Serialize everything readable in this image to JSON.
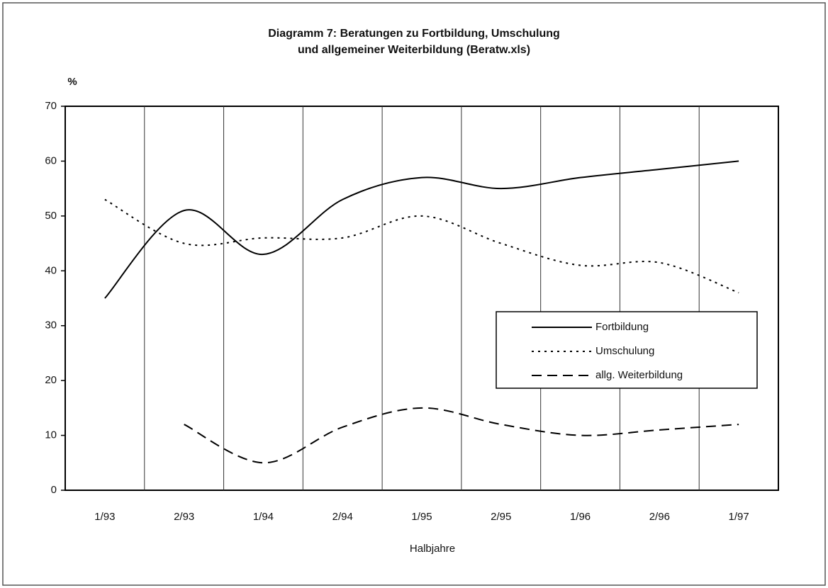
{
  "chart_data": {
    "type": "line",
    "title": "Diagramm 7: Beratungen zu Fortbildung, Umschulung",
    "subtitle": "und allgemeiner Weiterbildung (Beratw.xls)",
    "ylabel": "%",
    "xlabel": "Halbjahre",
    "categories": [
      "1/93",
      "2/93",
      "1/94",
      "2/94",
      "1/95",
      "2/95",
      "1/96",
      "2/96",
      "1/97"
    ],
    "series": [
      {
        "name": "Fortbildung",
        "color": "#000000",
        "dash": "solid",
        "values": [
          35,
          51,
          43,
          53,
          57,
          55,
          57,
          58.5,
          60
        ]
      },
      {
        "name": "Umschulung",
        "color": "#000000",
        "dash": "dotted",
        "values": [
          53,
          45,
          46,
          46,
          50,
          45,
          41,
          41.5,
          36
        ]
      },
      {
        "name": "allg. Weiterbildung",
        "color": "#000000",
        "dash": "dashed",
        "values": [
          null,
          12,
          5,
          11.5,
          15,
          12,
          10,
          11,
          12
        ]
      }
    ],
    "ylim": [
      0,
      70
    ],
    "yticks": [
      0,
      10,
      20,
      30,
      40,
      50,
      60,
      70
    ],
    "x_grid": true,
    "legend": "right"
  }
}
